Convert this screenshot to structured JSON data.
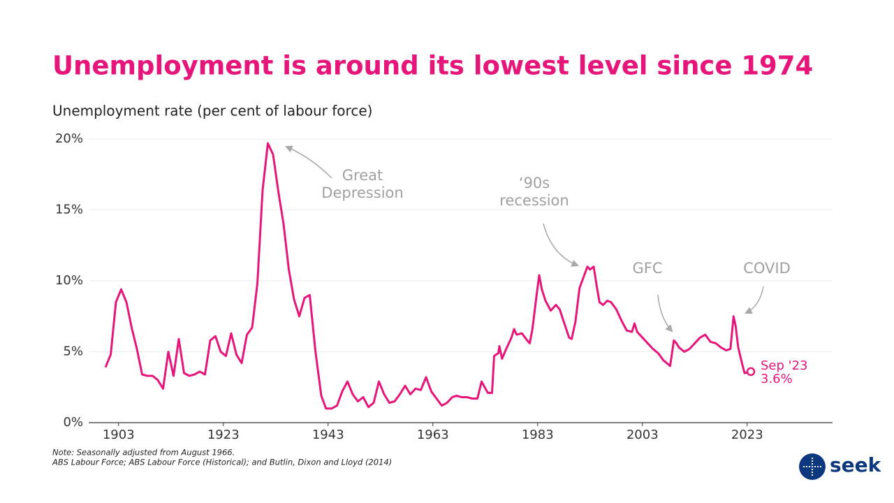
{
  "chart_data": {
    "type": "line",
    "title": "Unemployment is around its lowest level since 1974",
    "y_label": "Unemployment rate (per cent of labour force)",
    "color": "#e6157a",
    "x": [
      1900.5,
      1901.5,
      1902.5,
      1903.5,
      1904.5,
      1905.5,
      1906.5,
      1907.5,
      1908.5,
      1909.5,
      1910.5,
      1911.5,
      1912.5,
      1913.5,
      1914.5,
      1915.5,
      1916.5,
      1917.5,
      1918.5,
      1919.5,
      1920.5,
      1921.5,
      1922.5,
      1923.5,
      1924.5,
      1925.5,
      1926.5,
      1927.5,
      1928.5,
      1929.5,
      1930.5,
      1931.5,
      1932.5,
      1933.5,
      1934.5,
      1935.5,
      1936.5,
      1937.5,
      1938.5,
      1939.5,
      1940.6,
      1941.7,
      1942.6,
      1943.7,
      1944.7,
      1945.7,
      1946.7,
      1947.7,
      1948.7,
      1949.7,
      1950.7,
      1951.7,
      1952.7,
      1953.7,
      1954.7,
      1955.7,
      1956.7,
      1957.7,
      1958.7,
      1959.7,
      1960.7,
      1961.7,
      1962.7,
      1963.7,
      1964.7,
      1965.7,
      1966.7,
      1967.5,
      1968.5,
      1969.5,
      1970.5,
      1971.5,
      1972.3,
      1973.5,
      1974.3,
      1974.7,
      1975.5,
      1975.7,
      1976.2,
      1977,
      1978,
      1978.5,
      1979,
      1980,
      1981,
      1981.5,
      1982,
      1982.8,
      1983.3,
      1983.8,
      1984.5,
      1985.5,
      1986.5,
      1987.2,
      1988,
      1989,
      1989.5,
      1990.2,
      1991,
      1992,
      1992.5,
      1993,
      1993.7,
      1994.3,
      1994.8,
      1995.5,
      1996.3,
      1997,
      1998,
      1999,
      2000,
      2001,
      2001.5,
      2002,
      2003,
      2004,
      2005,
      2006,
      2007,
      2008.3,
      2009,
      2009.5,
      2010,
      2011,
      2012,
      2013,
      2014,
      2015,
      2016,
      2017,
      2018,
      2019,
      2019.8,
      2020.4,
      2020.8,
      2021.3,
      2022,
      2022.5,
      2023.7
    ],
    "values": [
      3.9,
      4.8,
      8.5,
      9.4,
      8.5,
      6.7,
      5.2,
      3.4,
      3.3,
      3.3,
      3.0,
      2.4,
      5.0,
      3.3,
      5.9,
      3.5,
      3.3,
      3.4,
      3.6,
      3.4,
      5.8,
      6.1,
      5.0,
      4.7,
      6.3,
      4.8,
      4.2,
      6.2,
      6.7,
      9.8,
      16.4,
      19.7,
      18.9,
      16.3,
      14.0,
      10.8,
      8.7,
      7.5,
      8.8,
      9.0,
      5.0,
      1.9,
      1.0,
      1.0,
      1.2,
      2.2,
      2.9,
      2.0,
      1.5,
      1.8,
      1.1,
      1.4,
      2.9,
      2.0,
      1.4,
      1.5,
      2.0,
      2.6,
      2.0,
      2.4,
      2.3,
      3.2,
      2.2,
      1.7,
      1.2,
      1.4,
      1.8,
      1.9,
      1.8,
      1.8,
      1.7,
      1.7,
      2.9,
      2.1,
      2.1,
      4.7,
      4.9,
      5.4,
      4.5,
      5.2,
      6.0,
      6.6,
      6.2,
      6.3,
      5.8,
      5.6,
      6.6,
      9.0,
      10.4,
      9.4,
      8.6,
      7.9,
      8.3,
      8.0,
      7.1,
      6.0,
      5.9,
      7.1,
      9.5,
      10.5,
      11.0,
      10.8,
      11.0,
      9.6,
      8.5,
      8.3,
      8.6,
      8.5,
      8.0,
      7.2,
      6.5,
      6.4,
      7.0,
      6.4,
      6.0,
      5.6,
      5.2,
      4.9,
      4.4,
      4.0,
      5.8,
      5.6,
      5.3,
      5.0,
      5.2,
      5.6,
      6.0,
      6.2,
      5.7,
      5.6,
      5.3,
      5.1,
      5.2,
      7.5,
      6.8,
      5.3,
      4.2,
      3.5,
      3.6
    ],
    "value_labels": [
      null,
      null,
      null,
      null,
      null,
      null,
      null,
      null,
      null,
      null,
      null,
      null,
      null,
      null,
      null,
      null,
      null,
      null,
      null,
      null,
      null,
      null,
      null,
      null,
      null,
      null,
      null,
      null,
      null,
      null,
      null,
      null,
      null,
      null,
      null,
      null,
      null,
      null,
      null,
      null,
      null,
      null,
      null,
      null,
      null,
      null,
      null,
      null,
      null,
      null,
      null,
      null,
      null,
      null,
      null,
      null,
      null,
      null,
      null,
      null,
      null,
      null,
      null,
      null,
      null,
      null,
      null,
      null,
      null,
      null,
      null,
      null,
      null,
      null,
      null,
      null,
      null,
      null,
      null,
      null,
      null,
      null,
      null,
      null,
      null,
      null,
      null,
      null,
      null,
      null,
      null,
      null,
      null,
      null,
      null,
      null,
      null,
      null,
      null,
      null,
      null,
      null,
      null,
      null,
      null,
      null,
      null,
      null,
      null,
      null,
      null,
      null,
      null,
      null,
      null,
      null,
      null,
      null,
      null,
      null,
      null,
      null,
      null,
      null,
      null,
      null,
      null,
      null,
      null,
      null,
      null,
      null,
      null,
      null,
      null,
      null,
      null,
      null,
      "3.6%"
    ],
    "end_label": "Sep '23",
    "xlim": [
      1897.3,
      2039.3
    ],
    "xticks": [
      1903,
      1923,
      1943,
      1963,
      1983,
      2003,
      2023
    ],
    "ylim": [
      0,
      20
    ],
    "yticks": [
      {
        "value": 0,
        "label": "0%"
      },
      {
        "value": 5,
        "label": "5%"
      },
      {
        "value": 10,
        "label": "10%"
      },
      {
        "value": 15,
        "label": "15%"
      },
      {
        "value": 20,
        "label": "20%"
      }
    ],
    "grid": true,
    "annotations": [
      {
        "lines": [
          "Great",
          "Depression"
        ]
      },
      {
        "lines": [
          "‘90s",
          "recession"
        ]
      },
      {
        "lines": [
          "GFC"
        ]
      },
      {
        "lines": [
          "COVID"
        ]
      }
    ],
    "notes": [
      "Note: Seasonally adjusted from August 1966.",
      "ABS Labour Force; ABS Labour Force (Historical); and Butlin, Dixon and Lloyd (2014)"
    ]
  },
  "logo": {
    "text": "seek"
  }
}
